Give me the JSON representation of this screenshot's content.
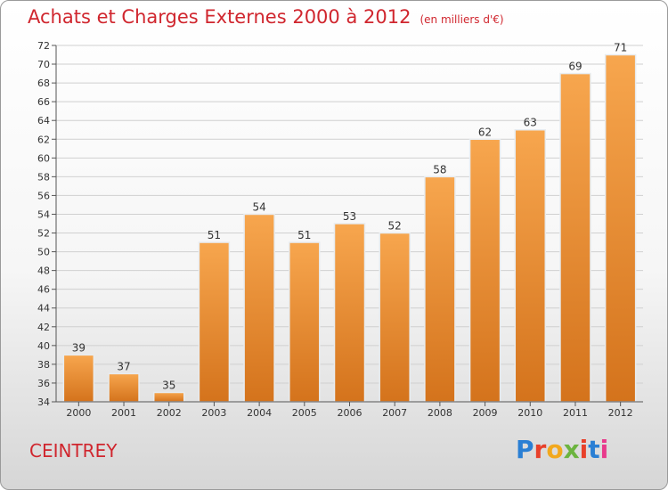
{
  "header": {
    "title": "Achats et Charges Externes 2000 à 2012",
    "subtitle": "(en milliers d'€)"
  },
  "footer": {
    "place_name": "CEINTREY",
    "brand": "Proxiti",
    "brand_colors": [
      "#2a7fd4",
      "#e8402a",
      "#f2a81d",
      "#6cb43f",
      "#e8402a",
      "#2a7fd4",
      "#e83a8c"
    ]
  },
  "colors": {
    "bar_light": "#f7a64e",
    "bar_dark": "#d4731c",
    "bar_edge": "#e8ecef",
    "grid": "#d0d0d0",
    "axis": "#555555",
    "text": "#333333"
  },
  "chart_data": {
    "type": "bar",
    "title": "Achats et Charges Externes 2000 à 2012",
    "subtitle": "(en milliers d'€)",
    "xlabel": "",
    "ylabel": "",
    "categories": [
      "2000",
      "2001",
      "2002",
      "2003",
      "2004",
      "2005",
      "2006",
      "2007",
      "2008",
      "2009",
      "2010",
      "2011",
      "2012"
    ],
    "values": [
      39,
      37,
      35,
      51,
      54,
      51,
      53,
      52,
      58,
      62,
      63,
      69,
      71
    ],
    "ylim": [
      34,
      72
    ],
    "ytick_step": 2,
    "grid": true,
    "data_labels": true
  }
}
